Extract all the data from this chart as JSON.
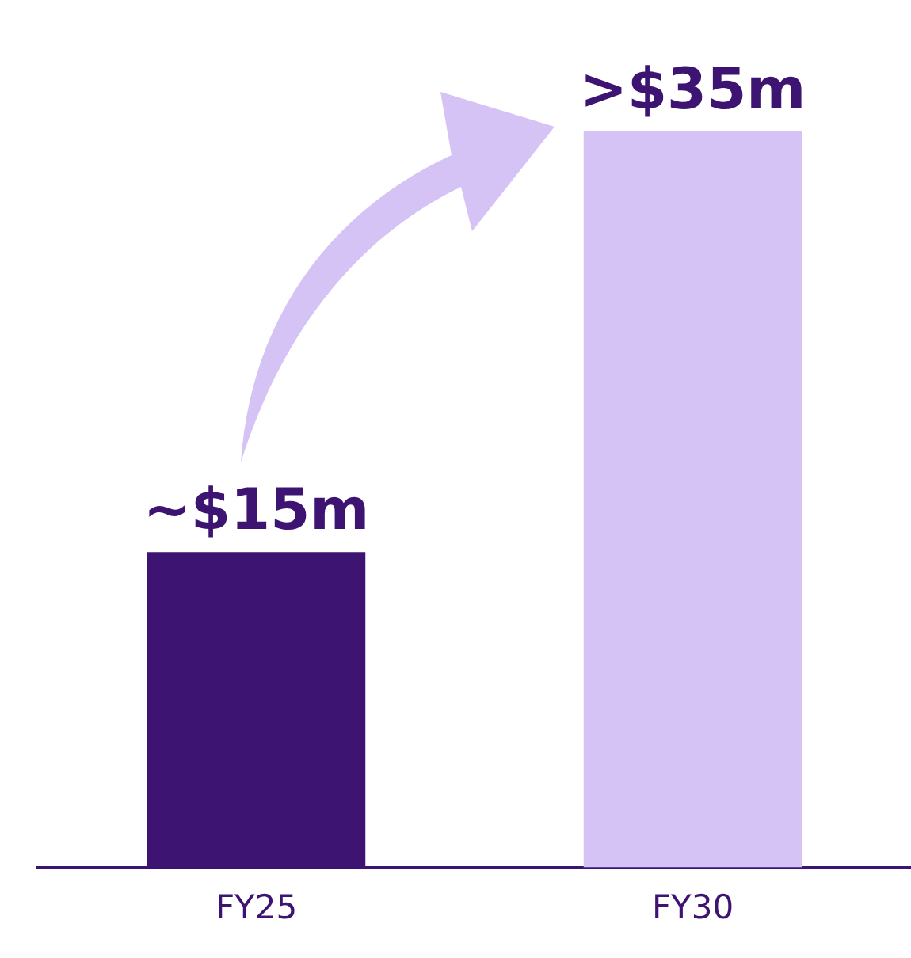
{
  "chart_data": {
    "type": "bar",
    "categories": [
      "FY25",
      "FY30"
    ],
    "values": [
      15,
      35
    ],
    "colors": [
      "#3d1472",
      "#d5c3f5"
    ],
    "value_labels": [
      "~$15m",
      ">$35m"
    ],
    "grid": false,
    "legend": false,
    "tick_labels": "x"
  }
}
